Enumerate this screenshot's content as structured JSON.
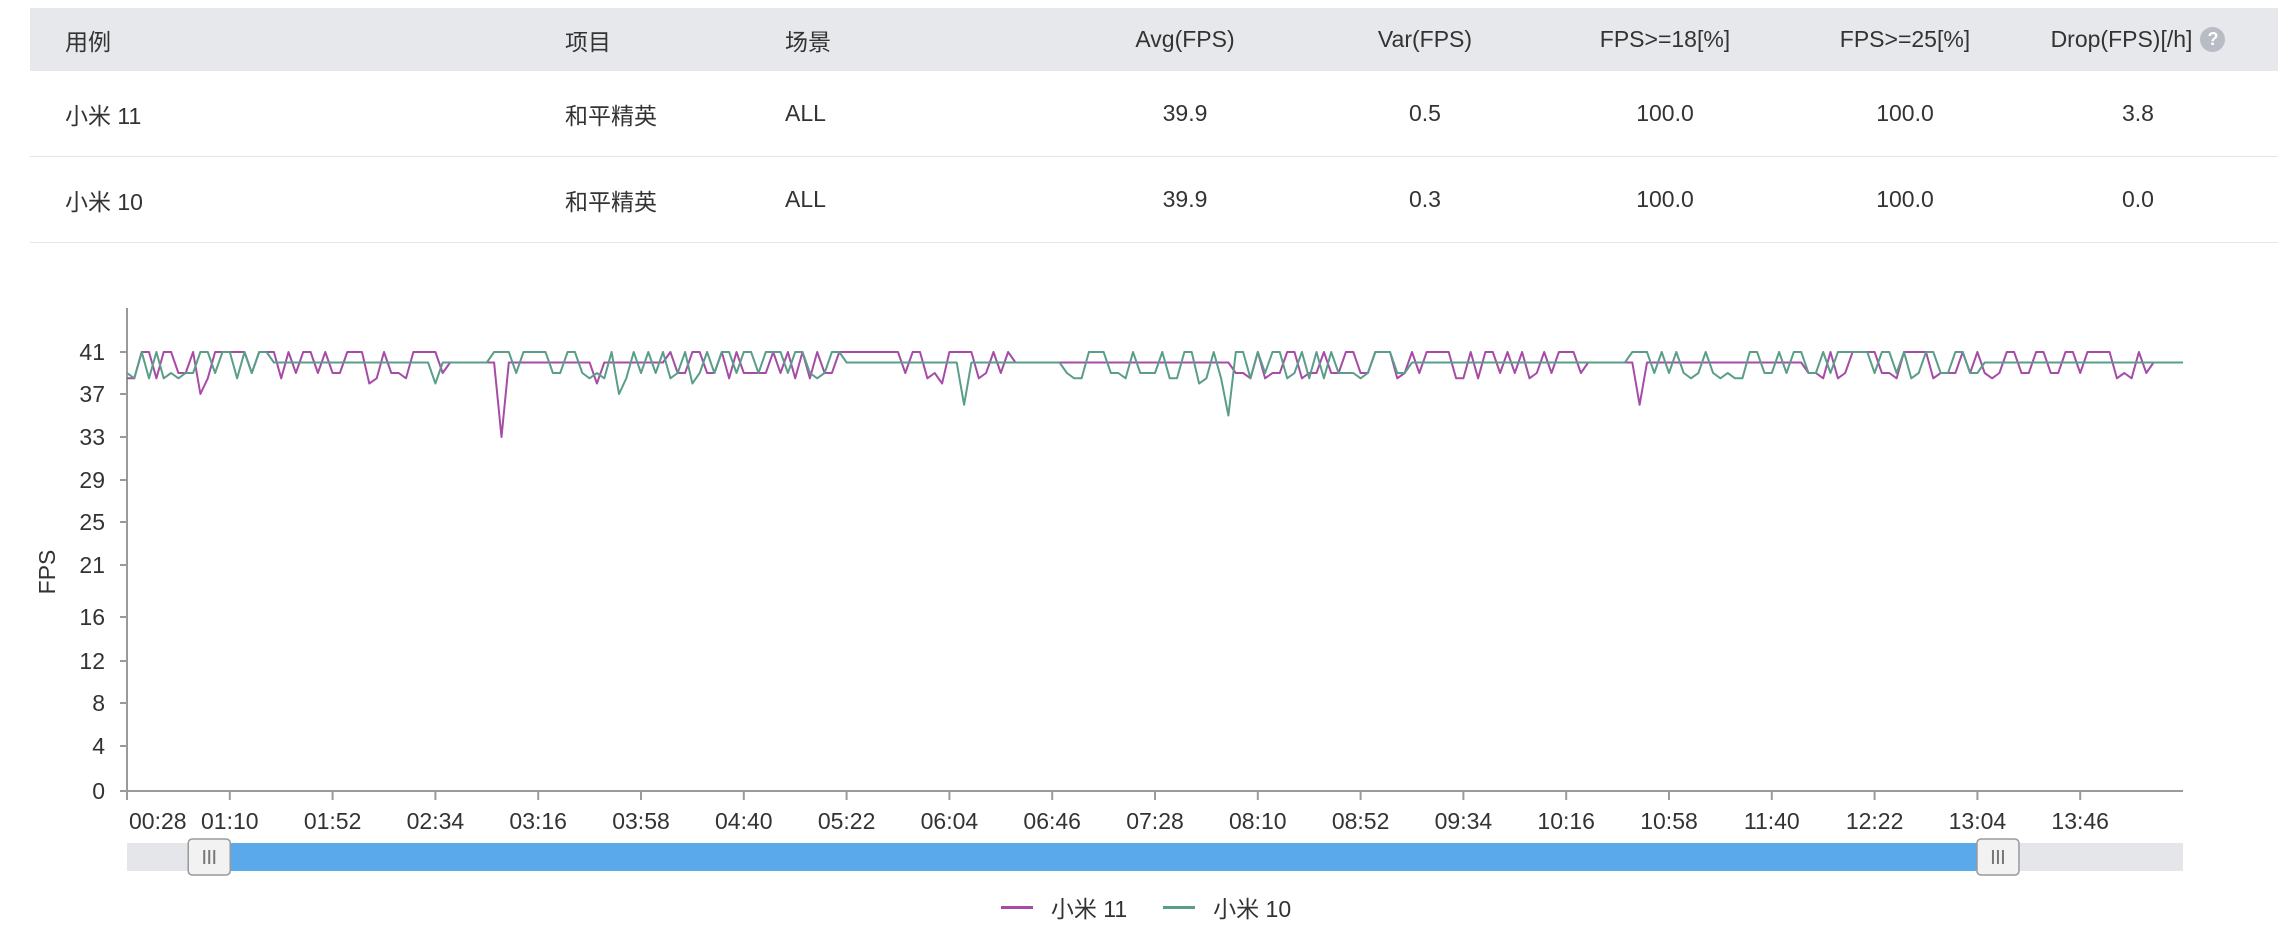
{
  "table": {
    "headers": [
      "用例",
      "项目",
      "场景",
      "Avg(FPS)",
      "Var(FPS)",
      "FPS>=18[%]",
      "FPS>=25[%]",
      "Drop(FPS)[/h]"
    ],
    "help_icon": "question-circle-icon",
    "rows": [
      [
        "小米 11",
        "和平精英",
        "ALL",
        "39.9",
        "0.5",
        "100.0",
        "100.0",
        "3.8"
      ],
      [
        "小米 10",
        "和平精英",
        "ALL",
        "39.9",
        "0.3",
        "100.0",
        "100.0",
        "0.0"
      ]
    ]
  },
  "chart_data": {
    "type": "line",
    "ylabel": "FPS",
    "xlabel": "",
    "ylim": [
      0,
      41
    ],
    "yticks": [
      0,
      4,
      8,
      12,
      16,
      21,
      25,
      29,
      33,
      37,
      41
    ],
    "xticks": [
      "00:28",
      "01:10",
      "01:52",
      "02:34",
      "03:16",
      "03:58",
      "04:40",
      "05:22",
      "06:04",
      "06:46",
      "07:28",
      "08:10",
      "08:52",
      "09:34",
      "10:16",
      "10:58",
      "11:40",
      "12:22",
      "13:04",
      "13:46"
    ],
    "x_range": [
      "00:28",
      "14:28"
    ],
    "grid": false,
    "legend_position": "bottom",
    "series": [
      {
        "name": "小米 11",
        "color": "#a64ca6",
        "baseline": 40,
        "dips": [
          {
            "time": "00:58",
            "value": 37
          },
          {
            "time": "02:06",
            "value": 38
          },
          {
            "time": "03:01",
            "value": 33
          },
          {
            "time": "03:40",
            "value": 38
          },
          {
            "time": "06:00",
            "value": 38
          },
          {
            "time": "10:46",
            "value": 36
          }
        ]
      },
      {
        "name": "小米 10",
        "color": "#5a9e8a",
        "baseline": 40,
        "dips": [
          {
            "time": "02:34",
            "value": 38
          },
          {
            "time": "03:48",
            "value": 37
          },
          {
            "time": "06:09",
            "value": 36
          },
          {
            "time": "07:45",
            "value": 38
          },
          {
            "time": "07:57",
            "value": 35
          },
          {
            "time": "04:20",
            "value": 38
          }
        ]
      }
    ],
    "data_zoom": {
      "start": 0.04,
      "end": 0.91
    }
  },
  "colors": {
    "header_bg": "#e6e8ec",
    "axis": "#9a9a9a",
    "zoom_track": "#e4e6ea",
    "zoom_fill": "#5aa9ea",
    "zoom_handle": "#f2f2f2"
  },
  "icons": {
    "zoom_left_handle": "grip-handle-icon",
    "zoom_right_handle": "grip-handle-icon"
  }
}
